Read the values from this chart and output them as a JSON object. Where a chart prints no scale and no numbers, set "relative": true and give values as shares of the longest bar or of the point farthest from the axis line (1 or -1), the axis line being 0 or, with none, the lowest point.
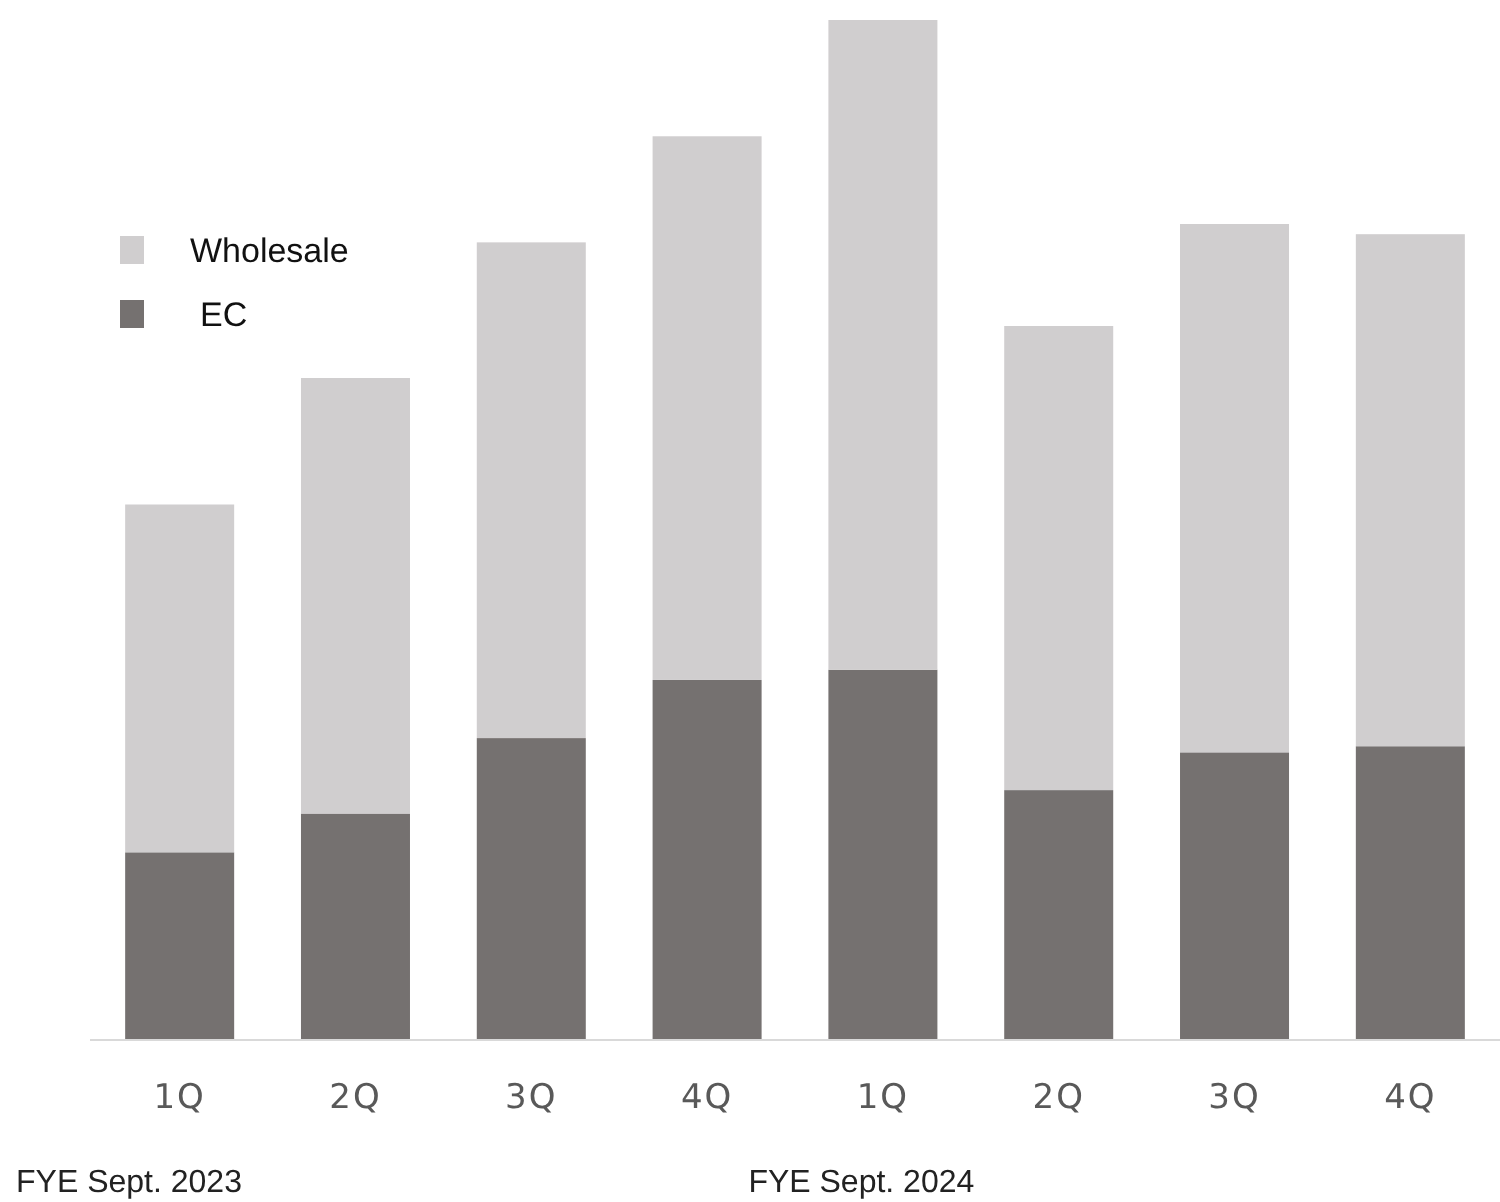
{
  "chart_data": {
    "type": "bar",
    "stacked": true,
    "relative": true,
    "categories": [
      "1Q",
      "2Q",
      "3Q",
      "4Q",
      "1Q",
      "2Q",
      "3Q",
      "4Q"
    ],
    "series": [
      {
        "name": "EC",
        "color": "#757170",
        "values": [
          0.184,
          0.222,
          0.296,
          0.353,
          0.363,
          0.245,
          0.282,
          0.288
        ]
      },
      {
        "name": "Wholesale",
        "color": "#d0cecf",
        "values": [
          0.341,
          0.427,
          0.486,
          0.533,
          0.637,
          0.455,
          0.518,
          0.502
        ]
      }
    ],
    "legend": "top left",
    "annotations": [
      "FYE Sept. 2023",
      "FYE Sept. 2024"
    ]
  }
}
